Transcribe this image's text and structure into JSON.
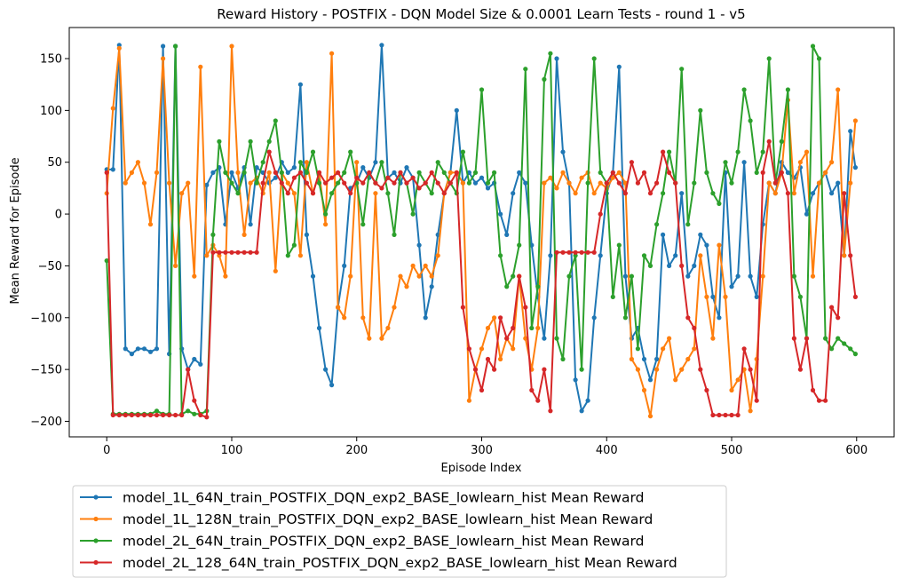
{
  "chart_data": {
    "type": "line",
    "title": "Reward History - POSTFIX - DQN Model Size & 0.0001 Learn Tests - round 1 - v5",
    "xlabel": "Episode Index",
    "ylabel": "Mean Reward for Episode",
    "xlim": [
      -30,
      630
    ],
    "ylim": [
      -215,
      180
    ],
    "xticks": [
      0,
      100,
      200,
      300,
      400,
      500,
      600
    ],
    "yticks": [
      -200,
      -150,
      -100,
      -50,
      0,
      50,
      100,
      150
    ],
    "legend_position": "below",
    "series": [
      {
        "name": "model_1L_64N_train_POSTFIX_DQN_exp2_BASE_lowlearn_hist Mean Reward",
        "color": "#1f77b4",
        "x": [
          0,
          5,
          10,
          15,
          20,
          25,
          30,
          35,
          40,
          45,
          50,
          55,
          60,
          65,
          70,
          75,
          80,
          85,
          90,
          95,
          100,
          105,
          110,
          115,
          120,
          125,
          130,
          135,
          140,
          145,
          150,
          155,
          160,
          165,
          170,
          175,
          180,
          185,
          190,
          195,
          200,
          205,
          210,
          215,
          220,
          225,
          230,
          235,
          240,
          245,
          250,
          255,
          260,
          265,
          270,
          275,
          280,
          285,
          290,
          295,
          300,
          305,
          310,
          315,
          320,
          325,
          330,
          335,
          340,
          345,
          350,
          355,
          360,
          365,
          370,
          375,
          380,
          385,
          390,
          395,
          400,
          405,
          410,
          415,
          420,
          425,
          430,
          435,
          440,
          445,
          450,
          455,
          460,
          465,
          470,
          475,
          480,
          485,
          490,
          495,
          500,
          505,
          510,
          515,
          520,
          525,
          530,
          535,
          540,
          545,
          550,
          555,
          560,
          565,
          570,
          575,
          580,
          585,
          590,
          595,
          599
        ],
        "values": [
          43,
          43,
          163,
          -130,
          -135,
          -130,
          -130,
          -133,
          -130,
          162,
          -135,
          162,
          -130,
          -150,
          -140,
          -145,
          28,
          40,
          45,
          -10,
          40,
          25,
          45,
          -10,
          45,
          40,
          30,
          35,
          50,
          40,
          45,
          125,
          -20,
          -60,
          -110,
          -150,
          -165,
          -90,
          -50,
          25,
          30,
          45,
          35,
          50,
          163,
          35,
          40,
          30,
          45,
          35,
          -30,
          -100,
          -70,
          -20,
          20,
          40,
          100,
          30,
          40,
          30,
          35,
          25,
          30,
          0,
          -20,
          20,
          40,
          30,
          -30,
          -80,
          -120,
          -40,
          150,
          60,
          30,
          -160,
          -190,
          -180,
          -100,
          -40,
          20,
          40,
          142,
          -60,
          -120,
          -110,
          -140,
          -160,
          -140,
          -20,
          -50,
          -40,
          20,
          -60,
          -50,
          -20,
          -30,
          -80,
          -100,
          40,
          -70,
          -60,
          50,
          -60,
          -80,
          -10,
          30,
          20,
          50,
          40,
          35,
          45,
          0,
          20,
          30,
          40,
          20,
          30,
          -40,
          80,
          45
        ]
      },
      {
        "name": "model_1L_128N_train_POSTFIX_DQN_exp2_BASE_lowlearn_hist Mean Reward",
        "color": "#ff7f0e",
        "x": [
          0,
          5,
          10,
          15,
          20,
          25,
          30,
          35,
          40,
          45,
          50,
          55,
          60,
          65,
          70,
          75,
          80,
          85,
          90,
          95,
          100,
          105,
          110,
          115,
          120,
          125,
          130,
          135,
          140,
          145,
          150,
          155,
          160,
          165,
          170,
          175,
          180,
          185,
          190,
          195,
          200,
          205,
          210,
          215,
          220,
          225,
          230,
          235,
          240,
          245,
          250,
          255,
          260,
          265,
          270,
          275,
          280,
          285,
          290,
          295,
          300,
          305,
          310,
          315,
          320,
          325,
          330,
          335,
          340,
          345,
          350,
          355,
          360,
          365,
          370,
          375,
          380,
          385,
          390,
          395,
          400,
          405,
          410,
          415,
          420,
          425,
          430,
          435,
          440,
          445,
          450,
          455,
          460,
          465,
          470,
          475,
          480,
          485,
          490,
          495,
          500,
          505,
          510,
          515,
          520,
          525,
          530,
          535,
          540,
          545,
          550,
          555,
          560,
          565,
          570,
          575,
          580,
          585,
          590,
          595,
          599
        ],
        "values": [
          20,
          102,
          160,
          30,
          40,
          50,
          30,
          -10,
          40,
          150,
          30,
          -50,
          20,
          30,
          -60,
          142,
          -40,
          -30,
          -40,
          -60,
          162,
          40,
          -20,
          30,
          35,
          20,
          40,
          -55,
          40,
          30,
          20,
          -40,
          50,
          20,
          40,
          -10,
          155,
          -90,
          -100,
          -60,
          50,
          -100,
          -120,
          20,
          -120,
          -110,
          -90,
          -60,
          -70,
          -50,
          -60,
          -50,
          -60,
          -40,
          20,
          40,
          40,
          30,
          -180,
          -150,
          -130,
          -110,
          -100,
          -140,
          -120,
          -130,
          -60,
          -120,
          -150,
          -110,
          30,
          35,
          25,
          40,
          30,
          20,
          35,
          40,
          20,
          30,
          25,
          35,
          40,
          30,
          -140,
          -150,
          -170,
          -195,
          -150,
          -130,
          -120,
          -160,
          -150,
          -140,
          -130,
          -40,
          -80,
          -120,
          -30,
          -80,
          -170,
          -160,
          -150,
          -190,
          -140,
          -60,
          30,
          20,
          40,
          110,
          20,
          50,
          60,
          -60,
          30,
          40,
          50,
          120,
          -40,
          30,
          90
        ]
      },
      {
        "name": "model_2L_64N_train_POSTFIX_DQN_exp2_BASE_lowlearn_hist Mean Reward",
        "color": "#2ca02c",
        "x": [
          0,
          5,
          10,
          15,
          20,
          25,
          30,
          35,
          40,
          45,
          50,
          55,
          60,
          65,
          70,
          75,
          80,
          85,
          90,
          95,
          100,
          105,
          110,
          115,
          120,
          125,
          130,
          135,
          140,
          145,
          150,
          155,
          160,
          165,
          170,
          175,
          180,
          185,
          190,
          195,
          200,
          205,
          210,
          215,
          220,
          225,
          230,
          235,
          240,
          245,
          250,
          255,
          260,
          265,
          270,
          275,
          280,
          285,
          290,
          295,
          300,
          305,
          310,
          315,
          320,
          325,
          330,
          335,
          340,
          345,
          350,
          355,
          360,
          365,
          370,
          375,
          380,
          385,
          390,
          395,
          400,
          405,
          410,
          415,
          420,
          425,
          430,
          435,
          440,
          445,
          450,
          455,
          460,
          465,
          470,
          475,
          480,
          485,
          490,
          495,
          500,
          505,
          510,
          515,
          520,
          525,
          530,
          535,
          540,
          545,
          550,
          555,
          560,
          565,
          570,
          575,
          580,
          585,
          590,
          595,
          599
        ],
        "values": [
          -45,
          -193,
          -193,
          -193,
          -193,
          -193,
          -193,
          -193,
          -190,
          -193,
          -193,
          162,
          -193,
          -190,
          -193,
          -193,
          -190,
          -20,
          70,
          40,
          30,
          20,
          40,
          70,
          30,
          50,
          70,
          90,
          40,
          -40,
          -30,
          50,
          40,
          60,
          30,
          0,
          20,
          30,
          40,
          60,
          30,
          -10,
          40,
          30,
          50,
          20,
          -20,
          40,
          30,
          0,
          40,
          30,
          20,
          50,
          40,
          30,
          20,
          60,
          30,
          40,
          120,
          30,
          40,
          -40,
          -70,
          -60,
          -30,
          140,
          -110,
          -70,
          130,
          155,
          -120,
          -140,
          -60,
          -40,
          -150,
          30,
          150,
          40,
          30,
          -80,
          -30,
          -100,
          -60,
          -130,
          -40,
          -50,
          -10,
          20,
          60,
          30,
          140,
          -10,
          30,
          100,
          40,
          20,
          10,
          50,
          30,
          60,
          120,
          90,
          40,
          60,
          150,
          30,
          70,
          120,
          -60,
          -80,
          -120,
          162,
          150,
          -120,
          -130,
          -120,
          -125,
          -130,
          -135
        ]
      },
      {
        "name": "model_2L_128_64N_train_POSTFIX_DQN_exp2_BASE_lowlearn_hist Mean Reward",
        "color": "#d62728",
        "x": [
          0,
          5,
          10,
          15,
          20,
          25,
          30,
          35,
          40,
          45,
          50,
          55,
          60,
          65,
          70,
          75,
          80,
          85,
          90,
          95,
          100,
          105,
          110,
          115,
          120,
          125,
          130,
          135,
          140,
          145,
          150,
          155,
          160,
          165,
          170,
          175,
          180,
          185,
          190,
          195,
          200,
          205,
          210,
          215,
          220,
          225,
          230,
          235,
          240,
          245,
          250,
          255,
          260,
          265,
          270,
          275,
          280,
          285,
          290,
          295,
          300,
          305,
          310,
          315,
          320,
          325,
          330,
          335,
          340,
          345,
          350,
          355,
          360,
          365,
          370,
          375,
          380,
          385,
          390,
          395,
          400,
          405,
          410,
          415,
          420,
          425,
          430,
          435,
          440,
          445,
          450,
          455,
          460,
          465,
          470,
          475,
          480,
          485,
          490,
          495,
          500,
          505,
          510,
          515,
          520,
          525,
          530,
          535,
          540,
          545,
          550,
          555,
          560,
          565,
          570,
          575,
          580,
          585,
          590,
          595,
          599
        ],
        "values": [
          40,
          -194,
          -194,
          -194,
          -194,
          -194,
          -194,
          -194,
          -194,
          -194,
          -194,
          -194,
          -194,
          -150,
          -180,
          -194,
          -196,
          -37,
          -37,
          -37,
          -37,
          -37,
          -37,
          -37,
          -37,
          30,
          60,
          40,
          30,
          20,
          35,
          40,
          30,
          20,
          40,
          30,
          35,
          40,
          30,
          20,
          35,
          30,
          40,
          30,
          25,
          35,
          30,
          40,
          30,
          35,
          25,
          30,
          40,
          30,
          20,
          30,
          40,
          -90,
          -130,
          -150,
          -170,
          -140,
          -150,
          -100,
          -120,
          -110,
          -60,
          -90,
          -170,
          -180,
          -150,
          -190,
          -37,
          -37,
          -37,
          -37,
          -37,
          -37,
          -37,
          0,
          30,
          40,
          30,
          20,
          50,
          30,
          40,
          20,
          30,
          60,
          40,
          30,
          -50,
          -100,
          -110,
          -150,
          -170,
          -194,
          -194,
          -194,
          -194,
          -194,
          -130,
          -150,
          -180,
          40,
          70,
          30,
          40,
          20,
          -120,
          -150,
          -120,
          -170,
          -180,
          -180,
          -90,
          -100,
          20,
          -40,
          -80
        ]
      }
    ]
  }
}
